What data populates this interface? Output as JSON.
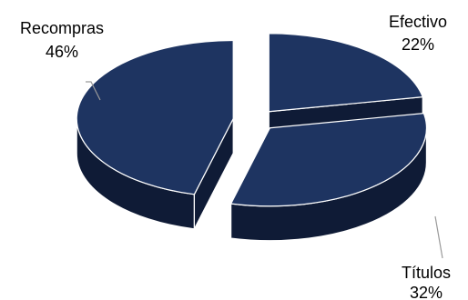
{
  "chart_data": {
    "type": "pie",
    "title": "",
    "legend": "none",
    "slices": [
      {
        "name": "Efectivo",
        "value": 22,
        "label": "22%"
      },
      {
        "name": "Títulos",
        "value": 32,
        "label": "32%"
      },
      {
        "name": "Recompras",
        "value": 46,
        "label": "46%"
      }
    ],
    "colors": {
      "top": "#1e3461",
      "side": "#0f1b36",
      "edge": "#ffffff",
      "leader": "#9a9a9a"
    }
  }
}
